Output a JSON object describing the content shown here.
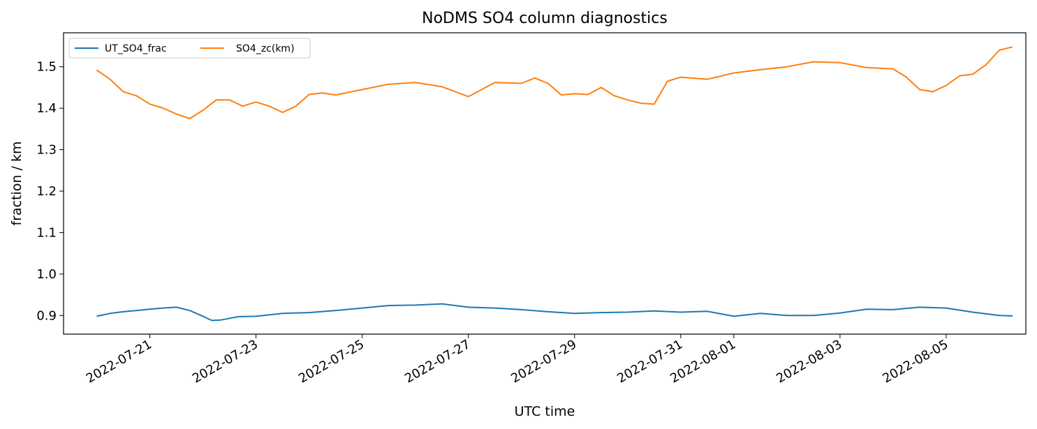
{
  "chart_data": {
    "type": "line",
    "title": "NoDMS SO4 column diagnostics",
    "xlabel": "UTC time",
    "ylabel": "fraction / km",
    "x_axis_type": "date",
    "xlim": [
      "2022-07-19T09:00",
      "2022-08-06T12:00"
    ],
    "ylim": [
      0.855,
      1.582
    ],
    "y_ticks": [
      0.9,
      1.0,
      1.1,
      1.2,
      1.3,
      1.4,
      1.5
    ],
    "y_tick_labels": [
      "0.9",
      "1.0",
      "1.1",
      "1.2",
      "1.3",
      "1.4",
      "1.5"
    ],
    "x_ticks": [
      "2022-07-21",
      "2022-07-23",
      "2022-07-25",
      "2022-07-27",
      "2022-07-29",
      "2022-07-31",
      "2022-08-01",
      "2022-08-03",
      "2022-08-05"
    ],
    "x_tick_labels": [
      "2022-07-21",
      "2022-07-23",
      "2022-07-25",
      "2022-07-27",
      "2022-07-29",
      "2022-07-31",
      "2022-08-01",
      "2022-08-03",
      "2022-08-05"
    ],
    "grid": false,
    "legend": {
      "placement": "top-left",
      "columns": 2
    },
    "series": [
      {
        "name": "UT_SO4_frac",
        "color": "#1f77b4",
        "points": [
          [
            "2022-07-20T00:00",
            0.898
          ],
          [
            "2022-07-20T06:00",
            0.905
          ],
          [
            "2022-07-20T12:00",
            0.909
          ],
          [
            "2022-07-20T18:00",
            0.912
          ],
          [
            "2022-07-21T00:00",
            0.915
          ],
          [
            "2022-07-21T06:00",
            0.918
          ],
          [
            "2022-07-21T12:00",
            0.92
          ],
          [
            "2022-07-21T18:00",
            0.912
          ],
          [
            "2022-07-22T00:00",
            0.898
          ],
          [
            "2022-07-22T04:00",
            0.888
          ],
          [
            "2022-07-22T08:00",
            0.889
          ],
          [
            "2022-07-22T16:00",
            0.897
          ],
          [
            "2022-07-23T00:00",
            0.898
          ],
          [
            "2022-07-23T12:00",
            0.905
          ],
          [
            "2022-07-24T00:00",
            0.907
          ],
          [
            "2022-07-24T12:00",
            0.912
          ],
          [
            "2022-07-25T00:00",
            0.918
          ],
          [
            "2022-07-25T12:00",
            0.924
          ],
          [
            "2022-07-26T00:00",
            0.925
          ],
          [
            "2022-07-26T12:00",
            0.928
          ],
          [
            "2022-07-27T00:00",
            0.92
          ],
          [
            "2022-07-27T12:00",
            0.918
          ],
          [
            "2022-07-28T00:00",
            0.914
          ],
          [
            "2022-07-28T12:00",
            0.909
          ],
          [
            "2022-07-29T00:00",
            0.905
          ],
          [
            "2022-07-29T12:00",
            0.907
          ],
          [
            "2022-07-30T00:00",
            0.908
          ],
          [
            "2022-07-30T12:00",
            0.911
          ],
          [
            "2022-07-31T00:00",
            0.908
          ],
          [
            "2022-07-31T12:00",
            0.91
          ],
          [
            "2022-08-01T00:00",
            0.898
          ],
          [
            "2022-08-01T12:00",
            0.905
          ],
          [
            "2022-08-02T00:00",
            0.9
          ],
          [
            "2022-08-02T12:00",
            0.9
          ],
          [
            "2022-08-03T00:00",
            0.906
          ],
          [
            "2022-08-03T12:00",
            0.915
          ],
          [
            "2022-08-04T00:00",
            0.914
          ],
          [
            "2022-08-04T12:00",
            0.92
          ],
          [
            "2022-08-05T00:00",
            0.918
          ],
          [
            "2022-08-05T12:00",
            0.908
          ],
          [
            "2022-08-06T00:00",
            0.9
          ],
          [
            "2022-08-06T06:00",
            0.899
          ]
        ]
      },
      {
        "name": "SO4_zc(km)",
        "color": "#ff7f0e",
        "points": [
          [
            "2022-07-20T00:00",
            1.492
          ],
          [
            "2022-07-20T06:00",
            1.47
          ],
          [
            "2022-07-20T12:00",
            1.44
          ],
          [
            "2022-07-20T18:00",
            1.43
          ],
          [
            "2022-07-21T00:00",
            1.41
          ],
          [
            "2022-07-21T06:00",
            1.4
          ],
          [
            "2022-07-21T12:00",
            1.386
          ],
          [
            "2022-07-21T18:00",
            1.375
          ],
          [
            "2022-07-22T00:00",
            1.395
          ],
          [
            "2022-07-22T06:00",
            1.42
          ],
          [
            "2022-07-22T12:00",
            1.42
          ],
          [
            "2022-07-22T18:00",
            1.405
          ],
          [
            "2022-07-23T00:00",
            1.415
          ],
          [
            "2022-07-23T06:00",
            1.405
          ],
          [
            "2022-07-23T12:00",
            1.39
          ],
          [
            "2022-07-23T18:00",
            1.405
          ],
          [
            "2022-07-24T00:00",
            1.433
          ],
          [
            "2022-07-24T06:00",
            1.437
          ],
          [
            "2022-07-24T12:00",
            1.432
          ],
          [
            "2022-07-25T00:00",
            1.445
          ],
          [
            "2022-07-25T12:00",
            1.458
          ],
          [
            "2022-07-26T00:00",
            1.462
          ],
          [
            "2022-07-26T12:00",
            1.452
          ],
          [
            "2022-07-27T00:00",
            1.428
          ],
          [
            "2022-07-27T06:00",
            1.445
          ],
          [
            "2022-07-27T12:00",
            1.462
          ],
          [
            "2022-07-28T00:00",
            1.46
          ],
          [
            "2022-07-28T06:00",
            1.473
          ],
          [
            "2022-07-28T12:00",
            1.46
          ],
          [
            "2022-07-28T18:00",
            1.432
          ],
          [
            "2022-07-29T00:00",
            1.435
          ],
          [
            "2022-07-29T06:00",
            1.433
          ],
          [
            "2022-07-29T12:00",
            1.45
          ],
          [
            "2022-07-29T18:00",
            1.43
          ],
          [
            "2022-07-30T00:00",
            1.42
          ],
          [
            "2022-07-30T06:00",
            1.412
          ],
          [
            "2022-07-30T12:00",
            1.41
          ],
          [
            "2022-07-30T18:00",
            1.465
          ],
          [
            "2022-07-31T00:00",
            1.475
          ],
          [
            "2022-07-31T12:00",
            1.47
          ],
          [
            "2022-08-01T00:00",
            1.485
          ],
          [
            "2022-08-01T12:00",
            1.493
          ],
          [
            "2022-08-02T00:00",
            1.5
          ],
          [
            "2022-08-02T12:00",
            1.512
          ],
          [
            "2022-08-03T00:00",
            1.51
          ],
          [
            "2022-08-03T12:00",
            1.498
          ],
          [
            "2022-08-04T00:00",
            1.495
          ],
          [
            "2022-08-04T06:00",
            1.475
          ],
          [
            "2022-08-04T12:00",
            1.445
          ],
          [
            "2022-08-04T18:00",
            1.44
          ],
          [
            "2022-08-05T00:00",
            1.455
          ],
          [
            "2022-08-05T06:00",
            1.478
          ],
          [
            "2022-08-05T12:00",
            1.482
          ],
          [
            "2022-08-05T18:00",
            1.505
          ],
          [
            "2022-08-06T00:00",
            1.54
          ],
          [
            "2022-08-06T06:00",
            1.548
          ]
        ]
      }
    ]
  }
}
